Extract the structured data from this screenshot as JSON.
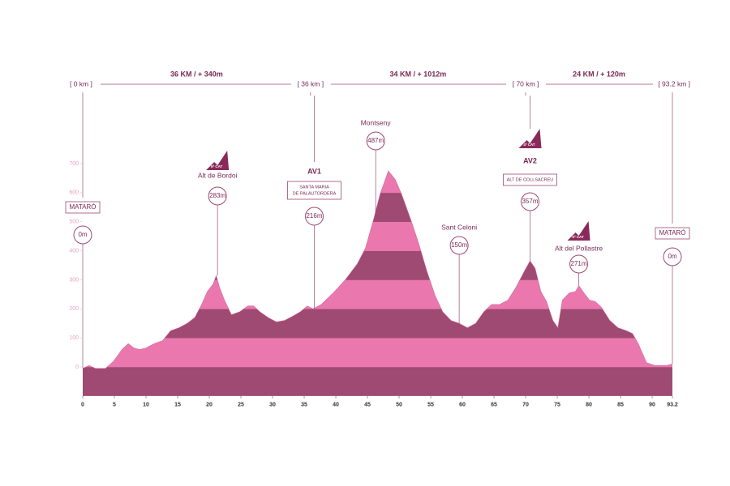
{
  "chart_data": {
    "type": "area",
    "x": [
      0,
      1,
      2,
      3.6,
      4.9,
      6.2,
      7.2,
      8.1,
      9,
      10,
      11.3,
      12.6,
      13.9,
      15.2,
      16.5,
      17.7,
      18.8,
      19.7,
      20.6,
      21.1,
      21.6,
      22.4,
      23.5,
      24.8,
      26.1,
      27,
      28,
      29.3,
      30.6,
      31.9,
      33.2,
      34.4,
      35.5,
      36.4,
      37.7,
      39.6,
      41.5,
      43.4,
      44.7,
      46,
      47,
      48.3,
      49.4,
      50.4,
      51.8,
      53.1,
      54.4,
      55.7,
      56.9,
      58.2,
      59.5,
      60.8,
      62.1,
      63.4,
      64.6,
      65.9,
      67.2,
      68.5,
      69.8,
      70.7,
      71.5,
      72.4,
      73.3,
      74.3,
      75.1,
      75.8,
      76.9,
      77.9,
      78.4,
      79.2,
      80.1,
      81,
      82,
      83.3,
      84.6,
      85.9,
      86.9,
      87.8,
      89.1,
      90.4,
      92.3,
      93.2
    ],
    "values": [
      -5,
      5,
      -5,
      -5,
      20,
      60,
      80,
      65,
      60,
      65,
      80,
      90,
      125,
      135,
      150,
      170,
      215,
      260,
      285,
      315,
      275,
      230,
      180,
      190,
      210,
      210,
      190,
      170,
      155,
      160,
      175,
      190,
      210,
      200,
      215,
      255,
      300,
      355,
      410,
      510,
      595,
      675,
      645,
      595,
      510,
      425,
      330,
      245,
      190,
      160,
      150,
      135,
      150,
      190,
      215,
      215,
      230,
      275,
      330,
      365,
      340,
      260,
      225,
      160,
      135,
      230,
      255,
      260,
      280,
      255,
      230,
      225,
      205,
      160,
      135,
      125,
      115,
      80,
      15,
      5,
      5,
      10
    ],
    "colors": [
      "#9e4a72",
      "#ea78ae"
    ],
    "xlim": [
      0,
      93.2
    ],
    "ylim": [
      -100,
      700
    ],
    "xticks": [
      0,
      5,
      10,
      15,
      20,
      25,
      30,
      35,
      40,
      45,
      50,
      55,
      60,
      65,
      70,
      75,
      80,
      85,
      90,
      93.2
    ],
    "yticks": [
      0,
      100,
      200,
      300,
      400,
      500,
      600,
      700
    ],
    "km_markers": [
      {
        "km": 0,
        "label": "[ 0 km ]"
      },
      {
        "km": 36,
        "label": "[ 36 km ]"
      },
      {
        "km": 70,
        "label": "[ 70 km ]"
      },
      {
        "km": 93.2,
        "label": "[ 93.2 km ]"
      }
    ],
    "stages": [
      "36 KM /  + 340m",
      "34 KM /  + 1012m",
      "24 KM /  + 120m"
    ],
    "points": [
      {
        "km": 0,
        "box": [
          "MATARÓ"
        ],
        "elevation": "0m"
      },
      {
        "km": 21.3,
        "category": "5ª CAT",
        "name": "Alt de Bordoi",
        "elevation": "283m"
      },
      {
        "km": 36.6,
        "tag": "AV1",
        "box": [
          "SANTA MARIA",
          "DE PALAUTORDERA"
        ],
        "elevation": "216m"
      },
      {
        "km": 46.3,
        "name": "Montseny",
        "elevation": "487m"
      },
      {
        "km": 59.5,
        "name": "Sant Celoni",
        "elevation": "150m"
      },
      {
        "km": 70.7,
        "category": "4ª CAT",
        "tag": "AV2",
        "box": [
          "ALT DE COLLSACREU"
        ],
        "elevation": "357m"
      },
      {
        "km": 78.4,
        "category": "5ª CAT",
        "name": "Alt del Pollastre",
        "elevation": "271m"
      },
      {
        "km": 93.2,
        "box": [
          "MATARÓ"
        ],
        "elevation": "0m"
      }
    ]
  }
}
